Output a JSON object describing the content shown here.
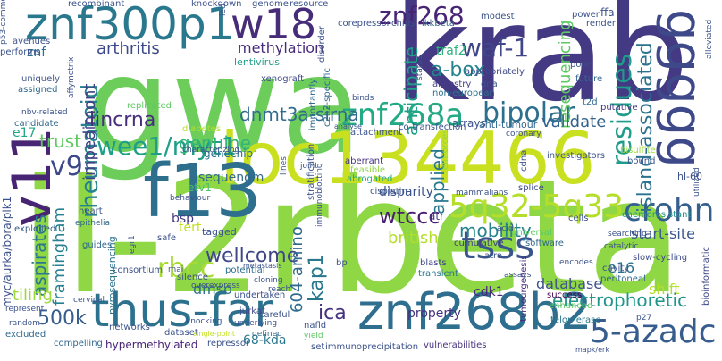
{
  "words": [
    {
      "text": "il-2rbeta",
      "color": "#8fd744"
    },
    {
      "text": "gwa",
      "color": "#6ccd5a"
    },
    {
      "text": "krab",
      "color": "#443983"
    },
    {
      "text": "loc134466",
      "color": "#c8e020"
    },
    {
      "text": "v11",
      "color": "#482475"
    },
    {
      "text": "znf300p1",
      "color": "#2a788e"
    },
    {
      "text": "znf268b2",
      "color": "#2e6e8e"
    },
    {
      "text": "thus-far",
      "color": "#2c728e"
    },
    {
      "text": "w18",
      "color": "#472c7a"
    },
    {
      "text": "f13",
      "color": "#2e6f8e"
    },
    {
      "text": "ggggg",
      "color": "#3e4989"
    },
    {
      "text": "5q32-5q33",
      "color": "#b5de2b"
    },
    {
      "text": "crohn",
      "color": "#355f8d"
    },
    {
      "text": "znf268a",
      "color": "#23a983"
    },
    {
      "text": "znf268",
      "color": "#482475"
    },
    {
      "text": "waf-1",
      "color": "#404688"
    },
    {
      "text": "wee1/myt1",
      "color": "#1f9f88"
    },
    {
      "text": "tsss",
      "color": "#39568c"
    },
    {
      "text": "rbcc",
      "color": "#a8db34"
    },
    {
      "text": "wtccc",
      "color": "#481f70"
    },
    {
      "text": "5-azadc",
      "color": "#365d8d"
    },
    {
      "text": "bipolar",
      "color": "#2d708e"
    },
    {
      "text": "residues",
      "color": "#1e9b8a"
    },
    {
      "text": "rheumatoid",
      "color": "#26828e"
    },
    {
      "text": "impedimont",
      "color": "#424086"
    },
    {
      "text": "lincrna",
      "color": "#472f7d"
    },
    {
      "text": "dnmt3a-sirna",
      "color": "#2f6c8e"
    },
    {
      "text": "genuine",
      "color": "#32b67a"
    },
    {
      "text": "trust",
      "color": "#5ec962"
    },
    {
      "text": "v9",
      "color": "#3e4989"
    },
    {
      "text": "arthritis",
      "color": "#3e4989"
    },
    {
      "text": "methylation",
      "color": "#472a7a"
    },
    {
      "text": "lentivirus",
      "color": "#1f9e89"
    },
    {
      "text": "a-box",
      "color": "#25838e"
    },
    {
      "text": "traf2",
      "color": "#2db27d"
    },
    {
      "text": "anticipate",
      "color": "#1fa088"
    },
    {
      "text": "resequencing",
      "color": "#5ec962"
    },
    {
      "text": "island-associated",
      "color": "#2c728e"
    },
    {
      "text": "validate",
      "color": "#33638d"
    },
    {
      "text": "applied",
      "color": "#2a788e"
    },
    {
      "text": "mobility",
      "color": "#25848e"
    },
    {
      "text": "british",
      "color": "#b5de2b"
    },
    {
      "text": "wellcome",
      "color": "#3f4788"
    },
    {
      "text": "ica",
      "color": "#46327e"
    },
    {
      "text": "aspirates",
      "color": "#2a778e"
    },
    {
      "text": "framingham",
      "color": "#26828e"
    },
    {
      "text": "500k",
      "color": "#365d8d"
    },
    {
      "text": "tiling",
      "color": "#9dd93b"
    },
    {
      "text": "dmso",
      "color": "#2d718e"
    },
    {
      "text": "604-amino",
      "color": "#2f6b8e"
    },
    {
      "text": "kap1",
      "color": "#2a788e"
    },
    {
      "text": "electrophoretic",
      "color": "#1f958b"
    },
    {
      "text": "database",
      "color": "#3b528b"
    },
    {
      "text": "start-site",
      "color": "#39568c"
    },
    {
      "text": "shift",
      "color": "#b5de2b"
    },
    {
      "text": "e16",
      "color": "#2c728e"
    },
    {
      "text": "genechip",
      "color": "#2d708e"
    },
    {
      "text": "sequenom",
      "color": "#31688e"
    },
    {
      "text": "disparity",
      "color": "#3b518b"
    },
    {
      "text": "bsp",
      "color": "#443a83"
    },
    {
      "text": "property",
      "color": "#46307e"
    },
    {
      "text": "cdk1",
      "color": "#482878"
    },
    {
      "text": "e17",
      "color": "#22a884"
    },
    {
      "text": "znf",
      "color": "#2d708e"
    },
    {
      "text": "myc/aurka/bora/plk1",
      "color": "#3b518b"
    },
    {
      "text": "68-kda",
      "color": "#2a788e"
    },
    {
      "text": "hypermethylated",
      "color": "#482475"
    },
    {
      "text": "tert",
      "color": "#c2df23"
    },
    {
      "text": "etv1",
      "color": "#4ac16d"
    },
    {
      "text": "xenograft",
      "color": "#3f4889"
    },
    {
      "text": "ancestry",
      "color": "#433e85"
    },
    {
      "text": "appropriately",
      "color": "#3e4989"
    },
    {
      "text": "non-european",
      "color": "#2d708e"
    },
    {
      "text": "bisulfite",
      "color": "#9dd93b"
    },
    {
      "text": "consortium",
      "color": "#3b528b"
    },
    {
      "text": "pyrosequencing",
      "color": "#2c738e"
    },
    {
      "text": "exploited",
      "color": "#365c8d"
    },
    {
      "text": "compelling",
      "color": "#31688e"
    },
    {
      "text": "immunoprecipitation",
      "color": "#3b528b"
    },
    {
      "text": "vulnerabilities",
      "color": "#46317e"
    },
    {
      "text": "undertaken",
      "color": "#3b528b"
    },
    {
      "text": "jurkat",
      "color": "#3e4989"
    },
    {
      "text": "potential",
      "color": "#2e6f8e"
    },
    {
      "text": "slow-cycling",
      "color": "#3e4a89"
    },
    {
      "text": "chemoresistant",
      "color": "#21918c"
    },
    {
      "text": "telomerase",
      "color": "#2a788e"
    },
    {
      "text": "bioinformatic",
      "color": "#3f4889"
    },
    {
      "text": "enhanced",
      "color": "#5ec962"
    },
    {
      "text": "success",
      "color": "#440154"
    },
    {
      "text": "peritoneal",
      "color": "#31688e"
    },
    {
      "text": "cavity",
      "color": "#3b528b"
    },
    {
      "text": "software",
      "color": "#31688e"
    },
    {
      "text": "universal",
      "color": "#5ec962"
    },
    {
      "text": "cumulative",
      "color": "#433e85"
    },
    {
      "text": "blasts",
      "color": "#404688"
    },
    {
      "text": "transient",
      "color": "#2a778e"
    },
    {
      "text": "atr",
      "color": "#46327e"
    },
    {
      "text": "tumourgenesis",
      "color": "#472d7b"
    },
    {
      "text": "safe",
      "color": "#3b528b"
    },
    {
      "text": "wtccc",
      "color": "#481f70"
    },
    {
      "text": "feasible",
      "color": "#8fd744"
    },
    {
      "text": "abrogated",
      "color": "#21a585"
    },
    {
      "text": "aberrant",
      "color": "#46327e"
    },
    {
      "text": "splice",
      "color": "#3e4989"
    },
    {
      "text": "cdna",
      "color": "#3b528b"
    },
    {
      "text": "investigators",
      "color": "#3b528b"
    },
    {
      "text": "t2d",
      "color": "#31688e"
    },
    {
      "text": "putative",
      "color": "#46327e"
    },
    {
      "text": "poor",
      "color": "#3b528b"
    },
    {
      "text": "future",
      "color": "#31688e"
    },
    {
      "text": "power",
      "color": "#3b528b"
    },
    {
      "text": "ffa",
      "color": "#3b528b"
    },
    {
      "text": "render",
      "color": "#3b528b"
    },
    {
      "text": "chips",
      "color": "#3b528b"
    },
    {
      "text": "ikkbeta",
      "color": "#31688e"
    },
    {
      "text": "corepressor",
      "color": "#3b528b"
    },
    {
      "text": "modest",
      "color": "#3b528b"
    },
    {
      "text": "disorder",
      "color": "#3b528b"
    },
    {
      "text": "resource",
      "color": "#3b528b"
    },
    {
      "text": "genome",
      "color": "#3b528b"
    },
    {
      "text": "knockdown",
      "color": "#3b528b"
    },
    {
      "text": "recombinant",
      "color": "#3b528b"
    },
    {
      "text": "avenues",
      "color": "#3b528b"
    },
    {
      "text": "performs",
      "color": "#3b528b"
    },
    {
      "text": "uniquely",
      "color": "#3b528b"
    },
    {
      "text": "assigned",
      "color": "#31688e"
    },
    {
      "text": "nbv-related",
      "color": "#3b528b"
    },
    {
      "text": "candidate",
      "color": "#31688e"
    },
    {
      "text": "replicated",
      "color": "#5ec962"
    },
    {
      "text": "importantly",
      "color": "#31688e"
    },
    {
      "text": "c2h2-specific",
      "color": "#31688e"
    },
    {
      "text": "diabetes",
      "color": "#b5de2b"
    },
    {
      "text": "characterizing",
      "color": "#3b528b"
    },
    {
      "text": "stratification",
      "color": "#3b528b"
    },
    {
      "text": "attachment",
      "color": "#3b528b"
    },
    {
      "text": "co-transfection",
      "color": "#3b528b"
    },
    {
      "text": "arrays",
      "color": "#3b528b"
    },
    {
      "text": "anti-tumour",
      "color": "#31688e"
    },
    {
      "text": "coronary",
      "color": "#3b528b"
    },
    {
      "text": "reinforces",
      "color": "#8fd744"
    },
    {
      "text": "lines",
      "color": "#3b528b"
    },
    {
      "text": "joint",
      "color": "#3b528b"
    },
    {
      "text": "cisplatin",
      "color": "#3b528b"
    },
    {
      "text": "mammalians",
      "color": "#3b528b"
    },
    {
      "text": "immunoblotting",
      "color": "#3b528b"
    },
    {
      "text": "heart",
      "color": "#3b528b"
    },
    {
      "text": "epithelia",
      "color": "#31688e"
    },
    {
      "text": "guides",
      "color": "#31688e"
    },
    {
      "text": "egr1",
      "color": "#3b528b"
    },
    {
      "text": "tagged",
      "color": "#3b528b"
    },
    {
      "text": "behaviour",
      "color": "#3b528b"
    },
    {
      "text": "metastasis",
      "color": "#3b528b"
    },
    {
      "text": "cloning",
      "color": "#3b528b"
    },
    {
      "text": "reach",
      "color": "#3b528b"
    },
    {
      "text": "rnai",
      "color": "#3b528b"
    },
    {
      "text": "silence",
      "color": "#3b528b"
    },
    {
      "text": "overexpress",
      "color": "#3b528b"
    },
    {
      "text": "underlying",
      "color": "#3b528b"
    },
    {
      "text": "careful",
      "color": "#3b528b"
    },
    {
      "text": "defined",
      "color": "#31688e"
    },
    {
      "text": "knocking",
      "color": "#3b528b"
    },
    {
      "text": "dataset",
      "color": "#3b528b"
    },
    {
      "text": "yield",
      "color": "#5ec962"
    },
    {
      "text": "set",
      "color": "#3b528b"
    },
    {
      "text": "nafld",
      "color": "#3b528b"
    },
    {
      "text": "repressor",
      "color": "#3b528b"
    },
    {
      "text": "single-point",
      "color": "#c2df23"
    },
    {
      "text": "networks",
      "color": "#3b528b"
    },
    {
      "text": "excluded",
      "color": "#31688e"
    },
    {
      "text": "random",
      "color": "#3b528b"
    },
    {
      "text": "represent",
      "color": "#3b528b"
    },
    {
      "text": "cervical",
      "color": "#3b528b"
    },
    {
      "text": "hl-60",
      "color": "#3b528b"
    },
    {
      "text": "utilized",
      "color": "#3b528b"
    },
    {
      "text": "searching",
      "color": "#3b528b"
    },
    {
      "text": "catalytic",
      "color": "#3b528b"
    },
    {
      "text": "encodes",
      "color": "#3b528b"
    },
    {
      "text": "assays",
      "color": "#3b528b"
    },
    {
      "text": "atra",
      "color": "#3b528b"
    },
    {
      "text": "mapk/erk",
      "color": "#3b528b"
    },
    {
      "text": "p53-common",
      "color": "#3b528b"
    },
    {
      "text": "affymetrix",
      "color": "#3b528b"
    },
    {
      "text": "analyse",
      "color": "#3b528b"
    },
    {
      "text": "dna",
      "color": "#3b528b"
    },
    {
      "text": "status",
      "color": "#3b528b"
    },
    {
      "text": "binds",
      "color": "#3b528b"
    },
    {
      "text": "led",
      "color": "#3b528b"
    },
    {
      "text": "p27",
      "color": "#3b528b"
    },
    {
      "text": "bound",
      "color": "#3b528b"
    },
    {
      "text": "bp",
      "color": "#3b528b"
    },
    {
      "text": "acid",
      "color": "#3b528b"
    },
    {
      "text": "alleviated",
      "color": "#3b528b"
    },
    {
      "text": "cells",
      "color": "#3b528b"
    }
  ]
}
